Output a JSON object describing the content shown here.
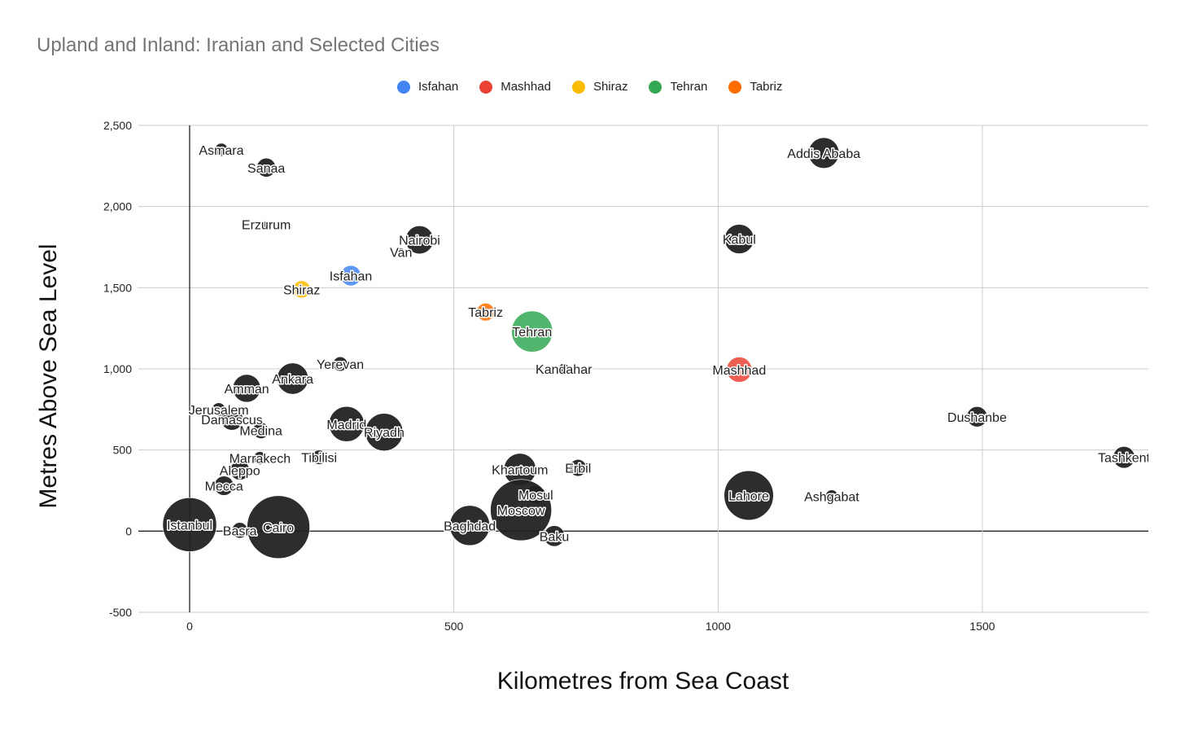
{
  "chart_data": {
    "type": "bubble",
    "title": "Upland and Inland: Iranian and Selected Cities",
    "xlabel": "Kilometres from Sea Coast",
    "ylabel": "Metres Above Sea Level",
    "xlim": [
      -95,
      1815
    ],
    "ylim": [
      -500,
      2500
    ],
    "xticks": [
      0,
      500,
      1000,
      1500
    ],
    "yticks": [
      -500,
      0,
      500,
      1000,
      1500,
      2000,
      2500
    ],
    "ytick_labels": [
      "-500",
      "0",
      "500",
      "1,000",
      "1,500",
      "2,000",
      "2,500"
    ],
    "legend": [
      {
        "name": "Isfahan",
        "color": "#4285f4"
      },
      {
        "name": "Mashhad",
        "color": "#ea4335"
      },
      {
        "name": "Shiraz",
        "color": "#fbbc04"
      },
      {
        "name": "Tehran",
        "color": "#34a853"
      },
      {
        "name": "Tabriz",
        "color": "#ff6d01"
      }
    ],
    "default_color": "#222222",
    "points": [
      {
        "name": "Asmara",
        "x": 60,
        "y": 2350,
        "size": 0.9
      },
      {
        "name": "Sanaa",
        "x": 145,
        "y": 2240,
        "size": 1.9
      },
      {
        "name": "Erzurum",
        "x": 145,
        "y": 1890,
        "size": 0.25
      },
      {
        "name": "Nairobi",
        "x": 435,
        "y": 1795,
        "size": 4.2
      },
      {
        "name": "Van",
        "x": 400,
        "y": 1720,
        "size": 0.35
      },
      {
        "name": "Isfahan",
        "x": 305,
        "y": 1574,
        "size": 2.2,
        "color": "#4285f4"
      },
      {
        "name": "Shiraz",
        "x": 212,
        "y": 1490,
        "size": 1.6,
        "color": "#fbbc04"
      },
      {
        "name": "Tabriz",
        "x": 560,
        "y": 1350,
        "size": 1.7,
        "color": "#ff6d01"
      },
      {
        "name": "Tehran",
        "x": 648,
        "y": 1230,
        "size": 9.0,
        "color": "#34a853"
      },
      {
        "name": "Kandahar",
        "x": 708,
        "y": 1000,
        "size": 0.6
      },
      {
        "name": "Yerevan",
        "x": 285,
        "y": 1030,
        "size": 1.1
      },
      {
        "name": "Ankara",
        "x": 195,
        "y": 940,
        "size": 5.2
      },
      {
        "name": "Amman",
        "x": 108,
        "y": 880,
        "size": 4.1
      },
      {
        "name": "Jerusalem",
        "x": 55,
        "y": 750,
        "size": 0.95
      },
      {
        "name": "Damascus",
        "x": 80,
        "y": 690,
        "size": 2.6
      },
      {
        "name": "Medina",
        "x": 135,
        "y": 620,
        "size": 1.4
      },
      {
        "name": "Madrid",
        "x": 297,
        "y": 660,
        "size": 6.6
      },
      {
        "name": "Riyadh",
        "x": 368,
        "y": 610,
        "size": 7.5
      },
      {
        "name": "Marrakech",
        "x": 133,
        "y": 450,
        "size": 0.9
      },
      {
        "name": "Tibilisi",
        "x": 245,
        "y": 455,
        "size": 1.1
      },
      {
        "name": "Aleppo",
        "x": 95,
        "y": 375,
        "size": 2.0
      },
      {
        "name": "Mecca",
        "x": 65,
        "y": 280,
        "size": 2.0
      },
      {
        "name": "Istanbul",
        "x": 0,
        "y": 40,
        "size": 15.5
      },
      {
        "name": "Basra",
        "x": 95,
        "y": 5,
        "size": 1.3
      },
      {
        "name": "Cairo",
        "x": 168,
        "y": 25,
        "size": 21.0
      },
      {
        "name": "Khartoum",
        "x": 625,
        "y": 380,
        "size": 5.5
      },
      {
        "name": "Erbil",
        "x": 735,
        "y": 390,
        "size": 1.5
      },
      {
        "name": "Mosul",
        "x": 655,
        "y": 225,
        "size": 1.9
      },
      {
        "name": "Moscow",
        "x": 627,
        "y": 130,
        "size": 20.0
      },
      {
        "name": "Baghdad",
        "x": 530,
        "y": 35,
        "size": 8.5
      },
      {
        "name": "Baku",
        "x": 690,
        "y": -30,
        "size": 2.3
      },
      {
        "name": "Kabul",
        "x": 1040,
        "y": 1800,
        "size": 4.6
      },
      {
        "name": "Mashhad",
        "x": 1040,
        "y": 995,
        "size": 3.4,
        "color": "#ea4335"
      },
      {
        "name": "Addis Ababa",
        "x": 1200,
        "y": 2330,
        "size": 5.0
      },
      {
        "name": "Dushanbe",
        "x": 1490,
        "y": 705,
        "size": 2.2
      },
      {
        "name": "Tashkent",
        "x": 1768,
        "y": 455,
        "size": 2.5
      },
      {
        "name": "Lahore",
        "x": 1058,
        "y": 220,
        "size": 13.0
      },
      {
        "name": "Ashgabat",
        "x": 1215,
        "y": 215,
        "size": 0.85
      }
    ]
  }
}
